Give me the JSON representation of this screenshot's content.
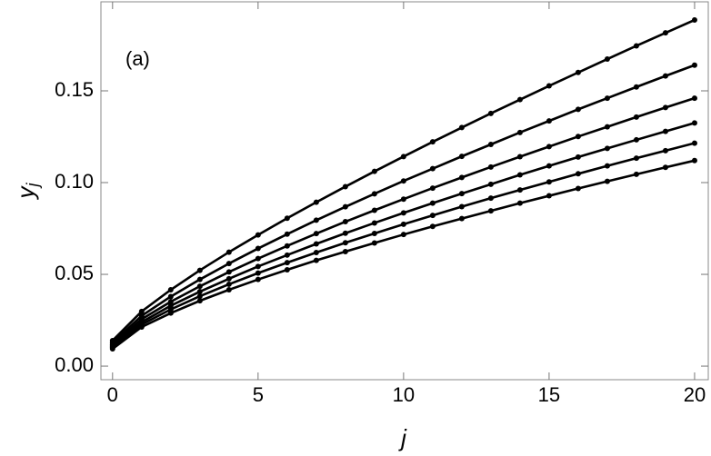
{
  "chart_data": {
    "type": "line",
    "markers": true,
    "annotation": "(a)",
    "xlabel": "j",
    "ylabel": "y",
    "ylabel_subscript": "j",
    "x": [
      0,
      1,
      2,
      3,
      4,
      5,
      6,
      7,
      8,
      9,
      10,
      11,
      12,
      13,
      14,
      15,
      16,
      17,
      18,
      19,
      20
    ],
    "series": [
      {
        "color": "#000000",
        "values": [
          0.0139,
          0.0298,
          0.0416,
          0.0522,
          0.0621,
          0.0715,
          0.0806,
          0.0893,
          0.0978,
          0.1061,
          0.1142,
          0.1222,
          0.13,
          0.1377,
          0.1452,
          0.1527,
          0.16,
          0.1673,
          0.1745,
          0.1816,
          0.1886
        ]
      },
      {
        "color": "#000000",
        "values": [
          0.0128,
          0.0274,
          0.0379,
          0.0472,
          0.0559,
          0.0641,
          0.0719,
          0.0795,
          0.0868,
          0.0939,
          0.1009,
          0.1076,
          0.1143,
          0.1208,
          0.1273,
          0.1336,
          0.1399,
          0.146,
          0.1521,
          0.1581,
          0.164
        ]
      },
      {
        "color": "#000000",
        "values": [
          0.0118,
          0.0256,
          0.0351,
          0.0435,
          0.0513,
          0.0586,
          0.0655,
          0.0722,
          0.0787,
          0.0849,
          0.091,
          0.097,
          0.1028,
          0.1085,
          0.1141,
          0.1196,
          0.1251,
          0.1304,
          0.1357,
          0.1409,
          0.146
        ]
      },
      {
        "color": "#000000",
        "values": [
          0.011,
          0.024,
          0.0329,
          0.0406,
          0.0476,
          0.0543,
          0.0605,
          0.0666,
          0.0724,
          0.078,
          0.0835,
          0.0888,
          0.094,
          0.0991,
          0.1042,
          0.1091,
          0.1139,
          0.1186,
          0.1233,
          0.1279,
          0.1325
        ]
      },
      {
        "color": "#000000",
        "values": [
          0.0102,
          0.0227,
          0.0309,
          0.0381,
          0.0446,
          0.0507,
          0.0564,
          0.0619,
          0.0672,
          0.0723,
          0.0773,
          0.0821,
          0.0869,
          0.0915,
          0.096,
          0.1004,
          0.1048,
          0.1091,
          0.1133,
          0.1174,
          0.1215
        ]
      },
      {
        "color": "#000000",
        "values": [
          0.0094,
          0.0213,
          0.0289,
          0.0356,
          0.0416,
          0.0472,
          0.0525,
          0.0576,
          0.0624,
          0.0671,
          0.0717,
          0.0761,
          0.0804,
          0.0846,
          0.0888,
          0.0928,
          0.0968,
          0.1007,
          0.1045,
          0.1083,
          0.112
        ]
      }
    ],
    "xlim": [
      -0.4,
      20.47
    ],
    "ylim": [
      -0.0074,
      0.1985
    ],
    "xticks": [
      0,
      5,
      10,
      15,
      20
    ],
    "yticks": [
      {
        "value": 0,
        "label": "0.00"
      },
      {
        "value": 0.05,
        "label": "0.05"
      },
      {
        "value": 0.1,
        "label": "0.10"
      },
      {
        "value": 0.15,
        "label": "0.15"
      }
    ],
    "grid": false
  }
}
